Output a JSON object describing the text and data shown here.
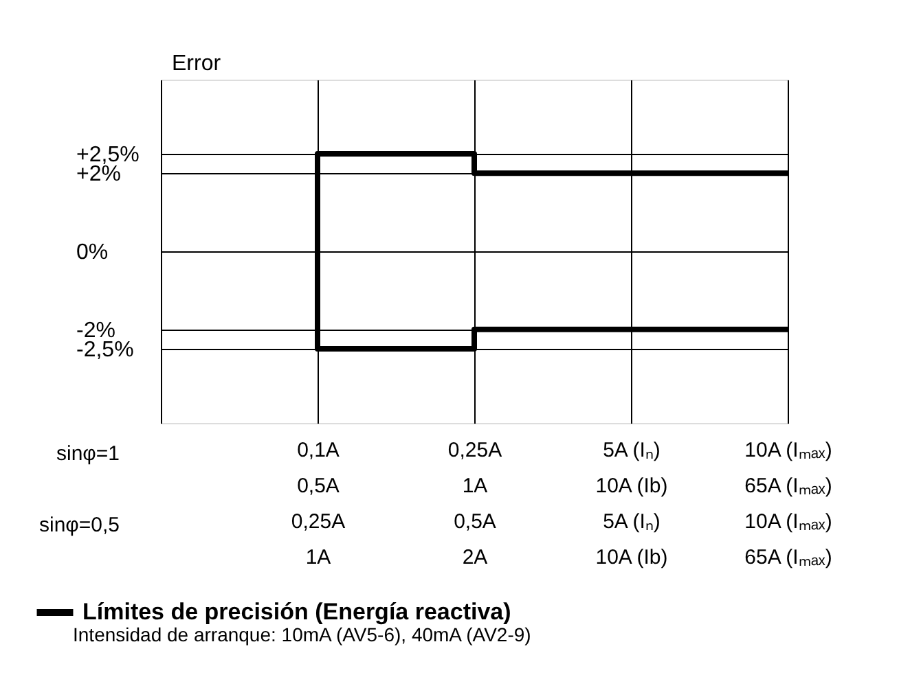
{
  "chart_data": {
    "type": "line",
    "ylabel": "Error",
    "categories": [
      null,
      "0,1A\n0,5A\n0,25A\n1A",
      "0,25A\n1A\n0,5A\n2A",
      "5A (Iₙ)\n10A (Ib)\n5A (Iₙ)\n10A (Ib)",
      "10A (Iₘₐₓ)\n65A (Iₘₐₓ)\n10A (Iₘₐₓ)\n65A (Iₘₐₓ)"
    ],
    "ylim": [
      -4.4,
      4.4
    ],
    "yticks": [
      {
        "value": 2.5,
        "label": "+2,5%"
      },
      {
        "value": 2,
        "label": "+2%"
      },
      {
        "value": 0,
        "label": "0%"
      },
      {
        "value": -2,
        "label": "-2%"
      },
      {
        "value": -2.5,
        "label": "-2,5%"
      }
    ],
    "series": [
      {
        "name": "Límites de precisión (Energía reactiva)",
        "color": "#000000",
        "x": [
          "10A (Iₘₐₓ)\n65A (Iₘₐₓ)\n10A (Iₘₐₓ)\n65A (Iₘₐₓ)",
          "0,25A\n1A\n0,5A\n2A",
          "0,25A\n1A\n0,5A\n2A",
          "0,1A\n0,5A\n0,25A\n1A",
          "0,1A\n0,5A\n0,25A\n1A",
          "0,25A\n1A\n0,5A\n2A",
          "0,25A\n1A\n0,5A\n2A",
          "10A (Iₘₐₓ)\n65A (Iₘₐₓ)\n10A (Iₘₐₓ)\n65A (Iₘₐₓ)"
        ],
        "values": [
          2,
          2,
          2.5,
          2.5,
          -2.5,
          -2.5,
          -2,
          -2
        ]
      }
    ],
    "annotations": [
      "sinφ=1",
      "sinφ=0,5",
      "Intensidad de arranque: 10mA (AV5-6), 40mA (AV2-9)"
    ],
    "grid": true,
    "legend": "bottom left",
    "marker": "none",
    "line_style": "solid"
  }
}
